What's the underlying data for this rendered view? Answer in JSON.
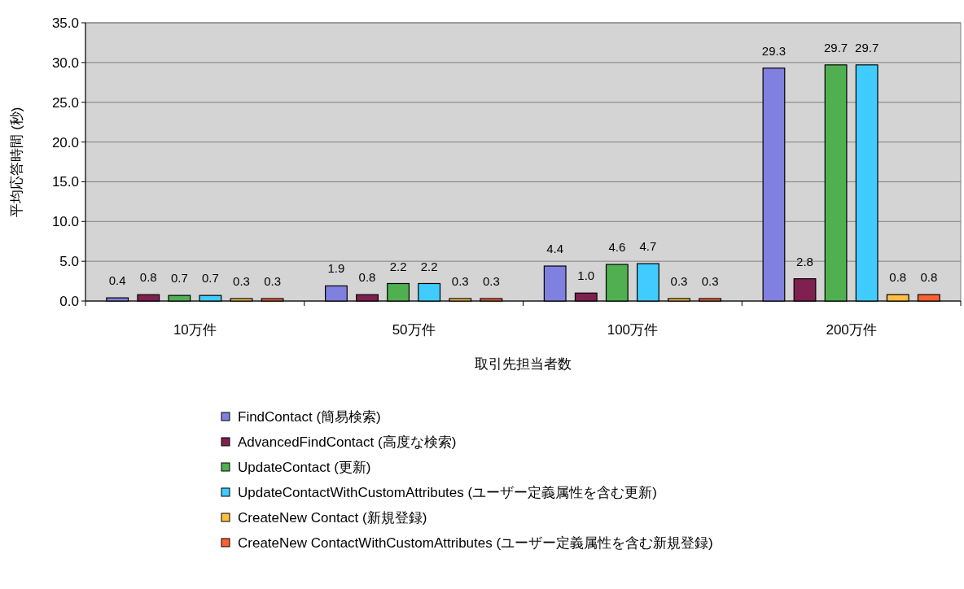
{
  "chart_data": {
    "type": "bar",
    "xlabel": "取引先担当者数",
    "ylabel": "平均応答時間 (秒)",
    "categories": [
      "10万件",
      "50万件",
      "100万件",
      "200万件"
    ],
    "ylim": [
      0,
      35
    ],
    "yticks": [
      {
        "value": 0,
        "label": "0.0"
      },
      {
        "value": 5,
        "label": "5.0"
      },
      {
        "value": 10,
        "label": "10.0"
      },
      {
        "value": 15,
        "label": "15.0"
      },
      {
        "value": 20,
        "label": "20.0"
      },
      {
        "value": 25,
        "label": "25.0"
      },
      {
        "value": 30,
        "label": "30.0"
      },
      {
        "value": 35,
        "label": "35.0"
      }
    ],
    "grid": "y",
    "legend": "bottom",
    "series": [
      {
        "name": "FindContact (簡易検索)",
        "color": "#8080e0",
        "values": [
          0.4,
          1.9,
          4.4,
          29.3
        ],
        "value_labels": [
          "0.4",
          "1.9",
          "4.4",
          "29.3"
        ]
      },
      {
        "name": "AdvancedFindContact (高度な検索)",
        "color": "#802050",
        "values": [
          0.8,
          0.8,
          1.0,
          2.8
        ],
        "value_labels": [
          "0.8",
          "0.8",
          "1.0",
          "2.8"
        ]
      },
      {
        "name": "UpdateContact (更新)",
        "color": "#50b050",
        "values": [
          0.7,
          2.2,
          4.6,
          29.7
        ],
        "value_labels": [
          "0.7",
          "2.2",
          "4.6",
          "29.7"
        ]
      },
      {
        "name": "UpdateContactWithCustomAttributes (ユーザー定義属性を含む更新)",
        "color": "#40ccff",
        "values": [
          0.7,
          2.2,
          4.7,
          29.7
        ],
        "value_labels": [
          "0.7",
          "2.2",
          "4.7",
          "29.7"
        ]
      },
      {
        "name": "CreateNew Contact (新規登録)",
        "color": "#ffc040",
        "values": [
          0.3,
          0.3,
          0.3,
          0.8
        ],
        "value_labels": [
          "0.3",
          "0.3",
          "0.3",
          "0.8"
        ]
      },
      {
        "name": "CreateNew ContactWithCustomAttributes (ユーザー定義属性を含む新規登録)",
        "color": "#ff6030",
        "values": [
          0.3,
          0.3,
          0.3,
          0.8
        ],
        "value_labels": [
          "0.3",
          "0.3",
          "0.3",
          "0.8"
        ]
      }
    ]
  }
}
